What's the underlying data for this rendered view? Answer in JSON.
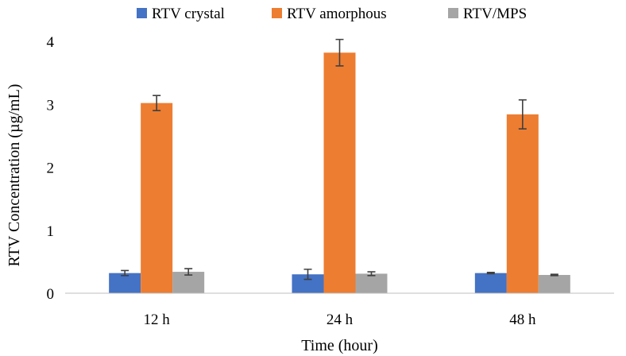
{
  "chart_data": {
    "type": "bar",
    "title": "",
    "categories": [
      "12 h",
      "24 h",
      "48 h"
    ],
    "series": [
      {
        "name": "RTV crystal",
        "color": "#4472c4",
        "values": [
          0.32,
          0.3,
          0.32
        ],
        "errors": [
          0.04,
          0.08,
          0.01
        ]
      },
      {
        "name": "RTV amorphous",
        "color": "#ed7d31",
        "values": [
          3.02,
          3.82,
          2.84
        ],
        "errors": [
          0.12,
          0.21,
          0.23
        ]
      },
      {
        "name": "RTV/MPS",
        "color": "#a5a5a5",
        "values": [
          0.34,
          0.31,
          0.29
        ],
        "errors": [
          0.05,
          0.03,
          0.01
        ]
      }
    ],
    "xlabel": "Time (hour)",
    "ylabel": "RTV Concentration (µg/mL)",
    "ylim": [
      0,
      4
    ],
    "yticks": [
      0,
      1,
      2,
      3,
      4
    ],
    "legend_position": "top",
    "grid": false
  }
}
